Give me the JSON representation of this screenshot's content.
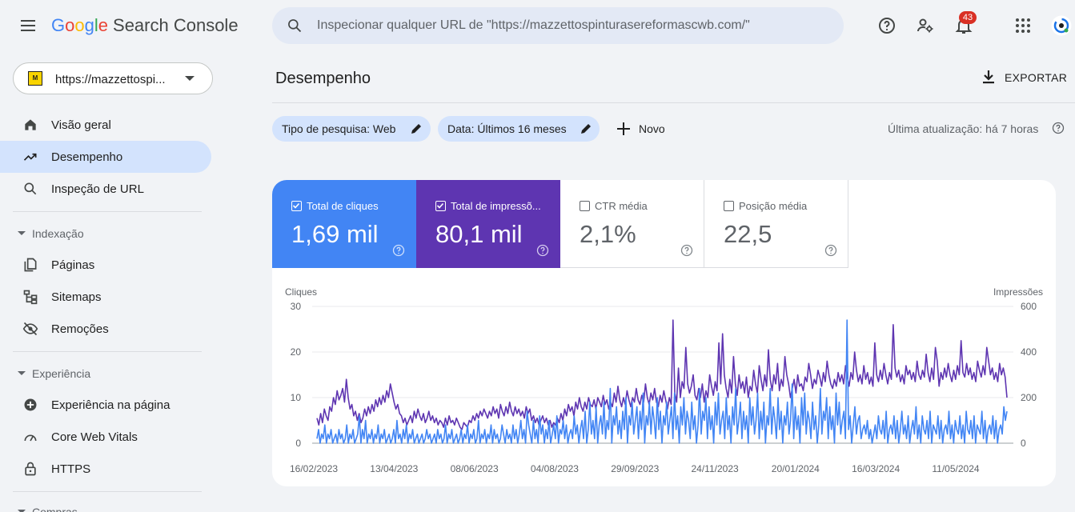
{
  "header": {
    "logo_letters": [
      "G",
      "o",
      "o",
      "g",
      "l",
      "e"
    ],
    "product": "Search Console",
    "search_placeholder": "Inspecionar qualquer URL de \"https://mazzettospinturasereformascwb.com/\"",
    "notifications_count": "43"
  },
  "sidebar": {
    "property": "https://mazzettospi...",
    "property_logo_text": "M",
    "items": [
      {
        "label": "Visão geral",
        "icon": "home-icon"
      },
      {
        "label": "Desempenho",
        "icon": "trending-up-icon",
        "active": true
      },
      {
        "label": "Inspeção de URL",
        "icon": "search-icon"
      }
    ],
    "sections": [
      {
        "label": "Indexação",
        "items": [
          {
            "label": "Páginas",
            "icon": "pages-icon"
          },
          {
            "label": "Sitemaps",
            "icon": "sitemap-icon"
          },
          {
            "label": "Remoções",
            "icon": "visibility-off-icon"
          }
        ]
      },
      {
        "label": "Experiência",
        "items": [
          {
            "label": "Experiência na página",
            "icon": "add-circle-icon"
          },
          {
            "label": "Core Web Vitals",
            "icon": "speed-gauge-icon"
          },
          {
            "label": "HTTPS",
            "icon": "lock-icon"
          }
        ]
      },
      {
        "label": "Compras"
      }
    ]
  },
  "main": {
    "title": "Desempenho",
    "export_label": "EXPORTAR",
    "filters": [
      {
        "label": "Tipo de pesquisa: Web"
      },
      {
        "label": "Data: Últimos 16 meses"
      }
    ],
    "new_label": "Novo",
    "last_update": "Última atualização: há 7 horas",
    "metrics": [
      {
        "label": "Total de cliques",
        "value": "1,69 mil",
        "checked": true,
        "color": "#4285f4"
      },
      {
        "label": "Total de impressõ...",
        "value": "80,1 mil",
        "checked": true,
        "color": "#5e35b1"
      },
      {
        "label": "CTR média",
        "value": "2,1%",
        "checked": false
      },
      {
        "label": "Posição média",
        "value": "22,5",
        "checked": false
      }
    ]
  },
  "chart_data": {
    "type": "line",
    "left_axis_label": "Cliques",
    "right_axis_label": "Impressões",
    "left_ticks": [
      "30",
      "20",
      "10",
      "0"
    ],
    "right_ticks": [
      "600",
      "400",
      "200",
      "0"
    ],
    "ylim_left": [
      0,
      30
    ],
    "ylim_right": [
      0,
      600
    ],
    "x_tick_labels": [
      "16/02/2023",
      "13/04/2023",
      "08/06/2023",
      "04/08/2023",
      "29/09/2023",
      "24/11/2023",
      "20/01/2024",
      "16/03/2024",
      "11/05/2024"
    ],
    "series": [
      {
        "name": "Cliques",
        "axis": "left",
        "color": "#4285f4",
        "values": [
          1,
          3,
          0,
          2,
          1,
          4,
          0,
          2,
          1,
          3,
          0,
          1,
          2,
          0,
          3,
          1,
          2,
          0,
          1,
          4,
          0,
          2,
          1,
          3,
          0,
          1,
          2,
          6,
          0,
          3,
          1,
          5,
          0,
          2,
          1,
          3,
          0,
          2,
          1,
          4,
          0,
          2,
          1,
          3,
          0,
          1,
          2,
          0,
          1,
          3,
          0,
          5,
          1,
          2,
          0,
          3,
          1,
          4,
          0,
          2,
          1,
          3,
          0,
          1,
          2,
          0,
          1,
          2,
          0,
          1,
          3,
          1,
          2,
          0,
          1,
          2,
          0,
          3,
          1,
          2,
          0,
          1,
          4,
          0,
          2,
          1,
          3,
          0,
          1,
          2,
          0,
          1,
          3,
          0,
          2,
          1,
          4,
          0,
          2,
          1,
          3,
          0,
          1,
          5,
          0,
          2,
          1,
          3,
          0,
          2,
          1,
          4,
          0,
          3,
          1,
          2,
          0,
          1,
          4,
          2,
          0,
          3,
          1,
          2,
          0,
          4,
          1,
          3,
          0,
          2,
          5,
          1,
          3,
          0,
          7,
          4,
          2,
          0,
          5,
          1,
          3,
          0,
          6,
          2,
          4,
          0,
          3,
          1,
          5,
          0,
          2,
          4,
          1,
          6,
          0,
          3,
          2,
          5,
          1,
          4,
          0,
          2,
          3,
          1,
          6,
          2,
          4,
          0,
          3,
          5,
          1,
          7,
          0,
          3,
          9,
          2,
          5,
          1,
          8,
          0,
          4,
          6,
          2,
          9,
          1,
          5,
          3,
          12,
          0,
          6,
          4,
          8,
          2,
          5,
          1,
          7,
          3,
          10,
          0,
          6,
          4,
          9,
          2,
          5,
          8,
          1,
          7,
          3,
          11,
          0,
          6,
          4,
          9,
          2,
          8,
          5,
          1,
          10,
          3,
          7,
          0,
          6,
          4,
          9,
          2,
          5,
          8,
          1,
          11,
          3,
          6,
          0,
          8,
          4,
          10,
          2,
          7,
          5,
          1,
          9,
          3,
          6,
          0,
          4,
          12,
          2,
          7,
          5,
          10,
          1,
          8,
          3,
          6,
          0,
          9,
          4,
          11,
          2,
          5,
          7,
          1,
          10,
          3,
          6,
          0,
          8,
          4,
          12,
          2,
          5,
          9,
          1,
          7,
          3,
          6,
          0,
          10,
          4,
          8,
          2,
          5,
          11,
          1,
          7,
          3,
          9,
          0,
          6,
          4,
          12,
          2,
          8,
          5,
          1,
          10,
          3,
          7,
          0,
          6,
          4,
          9,
          2,
          5,
          13,
          1,
          8,
          3,
          6,
          0,
          10,
          4,
          11,
          2,
          7,
          5,
          1,
          9,
          3,
          6,
          0,
          4,
          12,
          2,
          7,
          5,
          10,
          1,
          8,
          3,
          6,
          0,
          11,
          4,
          9,
          2,
          5,
          7,
          1,
          27,
          3,
          6,
          0,
          4,
          8,
          2,
          5,
          6,
          1,
          3,
          4,
          2,
          5,
          1,
          3,
          0,
          2,
          4,
          1,
          6,
          3,
          2,
          5,
          1,
          7,
          0,
          3,
          4,
          2,
          6,
          1,
          5,
          0,
          3,
          7,
          2,
          4,
          1,
          6,
          0,
          3,
          5,
          2,
          8,
          1,
          4,
          0,
          6,
          3,
          2,
          5,
          1,
          7,
          0,
          4,
          3,
          2,
          6,
          1,
          5,
          0,
          3,
          4,
          2,
          7,
          1,
          4,
          0,
          5,
          3,
          2,
          6,
          1,
          4,
          0,
          7,
          3,
          2,
          5,
          1,
          6,
          0,
          4,
          3,
          2,
          7,
          1,
          5,
          0,
          3,
          4,
          2,
          6,
          1,
          5,
          0,
          3,
          4,
          2,
          8,
          5,
          7
        ]
      },
      {
        "name": "Impressões",
        "axis": "right",
        "color": "#5e35b1",
        "values": [
          110,
          80,
          130,
          90,
          150,
          120,
          100,
          160,
          140,
          200,
          170,
          230,
          190,
          210,
          240,
          180,
          280,
          200,
          150,
          170,
          120,
          140,
          100,
          130,
          90,
          110,
          150,
          120,
          160,
          130,
          170,
          140,
          190,
          160,
          200,
          170,
          210,
          180,
          230,
          200,
          260,
          220,
          180,
          150,
          170,
          130,
          120,
          90,
          110,
          80,
          100,
          120,
          90,
          140,
          110,
          150,
          120,
          100,
          130,
          90,
          110,
          140,
          100,
          120,
          90,
          110,
          80,
          100,
          90,
          70,
          110,
          80,
          120,
          90,
          100,
          80,
          110,
          90,
          70,
          60,
          90,
          80,
          70,
          100,
          90,
          120,
          100,
          130,
          110,
          140,
          120,
          150,
          130,
          110,
          140,
          120,
          160,
          130,
          150,
          110,
          170,
          140,
          120,
          160,
          130,
          180,
          140,
          120,
          160,
          130,
          150,
          120,
          140,
          110,
          160,
          130,
          150,
          100,
          120,
          90,
          110,
          80,
          100,
          120,
          90,
          110,
          80,
          100,
          70,
          90,
          80,
          110,
          90,
          130,
          100,
          150,
          120,
          170,
          140,
          160,
          120,
          180,
          150,
          200,
          160,
          140,
          180,
          150,
          200,
          170,
          160,
          190,
          150,
          200,
          180,
          160,
          210,
          170,
          190,
          150,
          180,
          160,
          220,
          180,
          250,
          190,
          160,
          200,
          170,
          230,
          190,
          160,
          200,
          180,
          240,
          190,
          170,
          210,
          180,
          260,
          200,
          170,
          220,
          190,
          240,
          180,
          160,
          210,
          180,
          230,
          190,
          150,
          200,
          170,
          540,
          220,
          180,
          330,
          200,
          270,
          240,
          420,
          260,
          220,
          250,
          300,
          210,
          190,
          240,
          200,
          260,
          180,
          230,
          200,
          300,
          250,
          210,
          270,
          230,
          440,
          260,
          480,
          300,
          240,
          200,
          280,
          220,
          380,
          260,
          210,
          300,
          240,
          270,
          220,
          290,
          200,
          250,
          230,
          320,
          260,
          220,
          340,
          280,
          230,
          300,
          250,
          410,
          280,
          230,
          300,
          260,
          350,
          230,
          280,
          250,
          380,
          300,
          260,
          200,
          240,
          280,
          220,
          300,
          250,
          260,
          230,
          290,
          270,
          350,
          300,
          240,
          280,
          260,
          320,
          290,
          250,
          310,
          270,
          360,
          300,
          260,
          240,
          280,
          250,
          310,
          270,
          300,
          260,
          340,
          290,
          250,
          310,
          280,
          400,
          320,
          270,
          300,
          260,
          340,
          280,
          310,
          260,
          290,
          250,
          440,
          300,
          270,
          320,
          280,
          350,
          300,
          260,
          310,
          280,
          520,
          330,
          290,
          320,
          270,
          300,
          260,
          340,
          300,
          320,
          280,
          310,
          270,
          360,
          300,
          280,
          320,
          290,
          390,
          310,
          270,
          330,
          280,
          420,
          360,
          250,
          310,
          280,
          330,
          290,
          350,
          300,
          270,
          320,
          280,
          340,
          300,
          450,
          310,
          290,
          350,
          300,
          330,
          280,
          310,
          270,
          360,
          320,
          290,
          340,
          300,
          420,
          360,
          300,
          330,
          280,
          310,
          270,
          350,
          300,
          330,
          290,
          200
        ]
      }
    ]
  }
}
